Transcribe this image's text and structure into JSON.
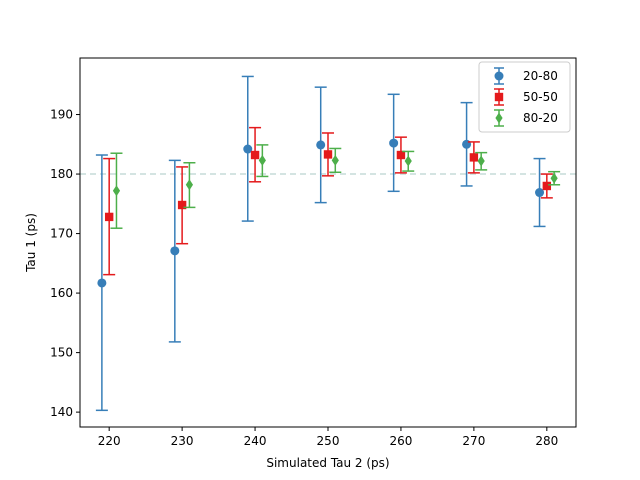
{
  "chart_data": {
    "type": "scatter",
    "xlabel": "Simulated Tau 2 (ps)",
    "ylabel": "Tau 1 (ps)",
    "xlim": [
      216,
      284
    ],
    "ylim": [
      137.5,
      199.5
    ],
    "xticks": [
      220,
      230,
      240,
      250,
      260,
      270,
      280
    ],
    "yticks": [
      140,
      150,
      160,
      170,
      180,
      190
    ],
    "reference_line": {
      "y": 180,
      "style": "dashed",
      "color": "#c5dbd8"
    },
    "legend_position": "top-right",
    "series": [
      {
        "name": "20-80",
        "color": "#377eb8",
        "marker": "circle",
        "x": [
          219,
          229,
          239,
          249,
          259,
          269,
          279
        ],
        "y": [
          161.7,
          167.1,
          184.2,
          184.9,
          185.2,
          185.0,
          176.9
        ],
        "yerr_low": [
          140.3,
          151.8,
          172.1,
          175.2,
          177.1,
          178.0,
          171.2
        ],
        "yerr_high": [
          183.2,
          182.3,
          196.4,
          194.6,
          193.4,
          192.0,
          182.6
        ]
      },
      {
        "name": "50-50",
        "color": "#e41a1c",
        "marker": "square",
        "x": [
          220,
          230,
          240,
          250,
          260,
          270,
          280
        ],
        "y": [
          172.8,
          174.8,
          183.2,
          183.3,
          183.2,
          182.8,
          178.0
        ],
        "yerr_low": [
          163.1,
          168.3,
          178.7,
          179.7,
          180.2,
          180.2,
          176.0
        ],
        "yerr_high": [
          182.6,
          181.2,
          187.8,
          186.9,
          186.2,
          185.4,
          180.0
        ]
      },
      {
        "name": "80-20",
        "color": "#4daf4a",
        "marker": "diamond",
        "x": [
          221,
          231,
          241,
          251,
          261,
          271,
          281
        ],
        "y": [
          177.2,
          178.2,
          182.3,
          182.3,
          182.2,
          182.2,
          179.3
        ],
        "yerr_low": [
          170.9,
          174.4,
          179.6,
          180.3,
          180.5,
          180.7,
          178.2
        ],
        "yerr_high": [
          183.5,
          181.9,
          184.9,
          184.3,
          183.8,
          183.6,
          180.4
        ]
      }
    ]
  }
}
